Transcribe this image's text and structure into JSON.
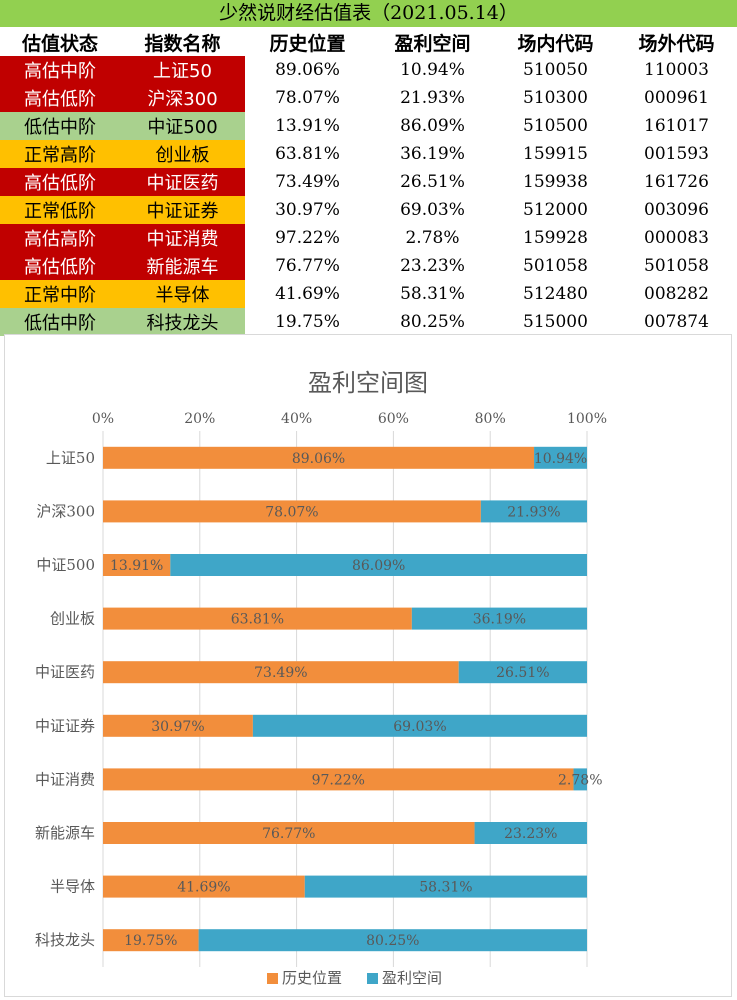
{
  "title": "少然说财经估值表（2021.05.14）",
  "table": {
    "headers": [
      "估值状态",
      "指数名称",
      "历史位置",
      "盈利空间",
      "场内代码",
      "场外代码"
    ],
    "rows": [
      {
        "status": "高估中阶",
        "index": "上证50",
        "hist": "89.06%",
        "profit": "10.94%",
        "inner": "510050",
        "outer": "110003",
        "color": "red"
      },
      {
        "status": "高估低阶",
        "index": "沪深300",
        "hist": "78.07%",
        "profit": "21.93%",
        "inner": "510300",
        "outer": "000961",
        "color": "red"
      },
      {
        "status": "低估中阶",
        "index": "中证500",
        "hist": "13.91%",
        "profit": "86.09%",
        "inner": "510500",
        "outer": "161017",
        "color": "green"
      },
      {
        "status": "正常高阶",
        "index": "创业板",
        "hist": "63.81%",
        "profit": "36.19%",
        "inner": "159915",
        "outer": "001593",
        "color": "orange"
      },
      {
        "status": "高估低阶",
        "index": "中证医药",
        "hist": "73.49%",
        "profit": "26.51%",
        "inner": "159938",
        "outer": "161726",
        "color": "red"
      },
      {
        "status": "正常低阶",
        "index": "中证证券",
        "hist": "30.97%",
        "profit": "69.03%",
        "inner": "512000",
        "outer": "003096",
        "color": "orange"
      },
      {
        "status": "高估高阶",
        "index": "中证消费",
        "hist": "97.22%",
        "profit": "2.78%",
        "inner": "159928",
        "outer": "000083",
        "color": "red"
      },
      {
        "status": "高估低阶",
        "index": "新能源车",
        "hist": "76.77%",
        "profit": "23.23%",
        "inner": "501058",
        "outer": "501058",
        "color": "red"
      },
      {
        "status": "正常中阶",
        "index": "半导体",
        "hist": "41.69%",
        "profit": "58.31%",
        "inner": "512480",
        "outer": "008282",
        "color": "orange"
      },
      {
        "status": "低估中阶",
        "index": "科技龙头",
        "hist": "19.75%",
        "profit": "80.25%",
        "inner": "515000",
        "outer": "007874",
        "color": "green"
      }
    ]
  },
  "colors": {
    "red": "#c00000",
    "green": "#a9d18e",
    "orange": "#ffc000",
    "hist_series": "#f28e3c",
    "profit_series": "#3fa6c8",
    "grid": "#d9d9d9",
    "text": "#595959"
  },
  "chart_data": {
    "type": "bar",
    "orientation": "horizontal",
    "stacked": true,
    "title": "盈利空间图",
    "categories": [
      "上证50",
      "沪深300",
      "中证500",
      "创业板",
      "中证医药",
      "中证证券",
      "中证消费",
      "新能源车",
      "半导体",
      "科技龙头"
    ],
    "series": [
      {
        "name": "历史位置",
        "values": [
          89.06,
          78.07,
          13.91,
          63.81,
          73.49,
          30.97,
          97.22,
          76.77,
          41.69,
          19.75
        ],
        "labels": [
          "89.06%",
          "78.07%",
          "13.91%",
          "63.81%",
          "73.49%",
          "30.97%",
          "97.22%",
          "76.77%",
          "41.69%",
          "19.75%"
        ]
      },
      {
        "name": "盈利空间",
        "values": [
          10.94,
          21.93,
          86.09,
          36.19,
          26.51,
          69.03,
          2.78,
          23.23,
          58.31,
          80.25
        ],
        "labels": [
          "10.94%",
          "21.93%",
          "86.09%",
          "36.19%",
          "26.51%",
          "69.03%",
          "2.78%",
          "23.23%",
          "58.31%",
          "80.25%"
        ]
      }
    ],
    "xlim": [
      0,
      100
    ],
    "xticks": [
      "0%",
      "20%",
      "40%",
      "60%",
      "80%",
      "100%"
    ],
    "axis_position": "top",
    "grid": true,
    "legend": "bottom"
  }
}
